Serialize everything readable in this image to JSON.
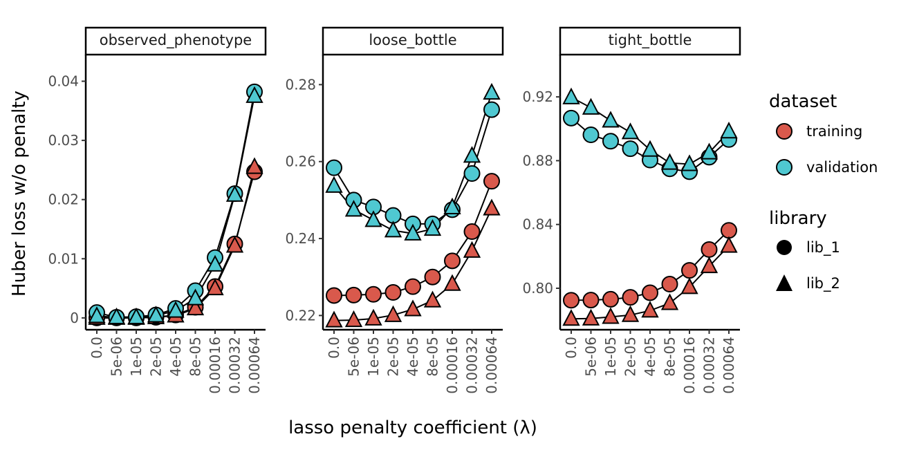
{
  "chart_data": {
    "type": "line",
    "ylabel": "Huber loss w/o penalty",
    "xlabel": "lasso penalty coefficient (λ)",
    "categories": [
      "0.0",
      "5e-06",
      "1e-05",
      "2e-05",
      "4e-05",
      "8e-05",
      "0.00016",
      "0.00032",
      "0.00064"
    ],
    "legend": {
      "dataset_title": "dataset",
      "dataset_entries": [
        {
          "name": "training",
          "color": "#d9594c"
        },
        {
          "name": "validation",
          "color": "#4fc8d1"
        }
      ],
      "library_title": "library",
      "library_entries": [
        {
          "name": "lib_1",
          "shape": "circle"
        },
        {
          "name": "lib_2",
          "shape": "triangle"
        }
      ]
    },
    "panels": [
      {
        "title": "observed_phenotype",
        "ylim": [
          -0.002,
          0.0445
        ],
        "yticks": [
          0,
          0.01,
          0.02,
          0.03,
          0.04
        ],
        "ytick_labels": [
          "0",
          "0.01",
          "0.02",
          "0.03",
          "0.04"
        ],
        "series": [
          {
            "dataset": "training",
            "library": "lib_1",
            "values": [
              0.0,
              0.0,
              0.0,
              0.0001,
              0.0005,
              0.0018,
              0.0053,
              0.0125,
              0.0247
            ]
          },
          {
            "dataset": "training",
            "library": "lib_2",
            "values": [
              0.0,
              0.0,
              0.0,
              0.0001,
              0.0004,
              0.0016,
              0.005,
              0.0122,
              0.0255
            ]
          },
          {
            "dataset": "validation",
            "library": "lib_1",
            "values": [
              0.0009,
              0.0001,
              0.0002,
              0.0005,
              0.0016,
              0.0046,
              0.0102,
              0.021,
              0.0382
            ]
          },
          {
            "dataset": "validation",
            "library": "lib_2",
            "values": [
              0.0003,
              0.0001,
              0.0001,
              0.0004,
              0.0012,
              0.0033,
              0.009,
              0.0208,
              0.0375
            ]
          }
        ]
      },
      {
        "title": "loose_bottle",
        "ylim": [
          0.2163,
          0.2878
        ],
        "yticks": [
          0.22,
          0.24,
          0.26,
          0.28
        ],
        "ytick_labels": [
          "0.22",
          "0.24",
          "0.26",
          "0.28"
        ],
        "series": [
          {
            "dataset": "training",
            "library": "lib_1",
            "values": [
              0.2252,
              0.2253,
              0.2255,
              0.226,
              0.2275,
              0.23,
              0.2342,
              0.2418,
              0.2549
            ]
          },
          {
            "dataset": "training",
            "library": "lib_2",
            "values": [
              0.2187,
              0.2188,
              0.2192,
              0.2201,
              0.2216,
              0.2239,
              0.2282,
              0.2368,
              0.2478
            ]
          },
          {
            "dataset": "validation",
            "library": "lib_1",
            "values": [
              0.2584,
              0.25,
              0.2482,
              0.246,
              0.2438,
              0.2438,
              0.2475,
              0.2569,
              0.2735
            ]
          },
          {
            "dataset": "validation",
            "library": "lib_2",
            "values": [
              0.2537,
              0.2475,
              0.2448,
              0.2421,
              0.2413,
              0.2425,
              0.2481,
              0.2615,
              0.2779
            ]
          }
        ]
      },
      {
        "title": "tight_bottle",
        "ylim": [
          0.774,
          0.9465
        ],
        "yticks": [
          0.8,
          0.84,
          0.88,
          0.92
        ],
        "ytick_labels": [
          "0.80",
          "0.84",
          "0.88",
          "0.92"
        ],
        "series": [
          {
            "dataset": "training",
            "library": "lib_1",
            "values": [
              0.7925,
              0.7926,
              0.7931,
              0.7943,
              0.7972,
              0.8026,
              0.8112,
              0.8243,
              0.8363
            ]
          },
          {
            "dataset": "training",
            "library": "lib_2",
            "values": [
              0.7808,
              0.781,
              0.782,
              0.7832,
              0.786,
              0.7907,
              0.8007,
              0.8138,
              0.8266
            ]
          },
          {
            "dataset": "validation",
            "library": "lib_1",
            "values": [
              0.9067,
              0.8962,
              0.8922,
              0.8875,
              0.8804,
              0.8749,
              0.8731,
              0.8822,
              0.8933
            ]
          },
          {
            "dataset": "validation",
            "library": "lib_2",
            "values": [
              0.9197,
              0.9132,
              0.9051,
              0.8978,
              0.8868,
              0.8786,
              0.8778,
              0.8851,
              0.8983
            ]
          }
        ]
      }
    ]
  }
}
